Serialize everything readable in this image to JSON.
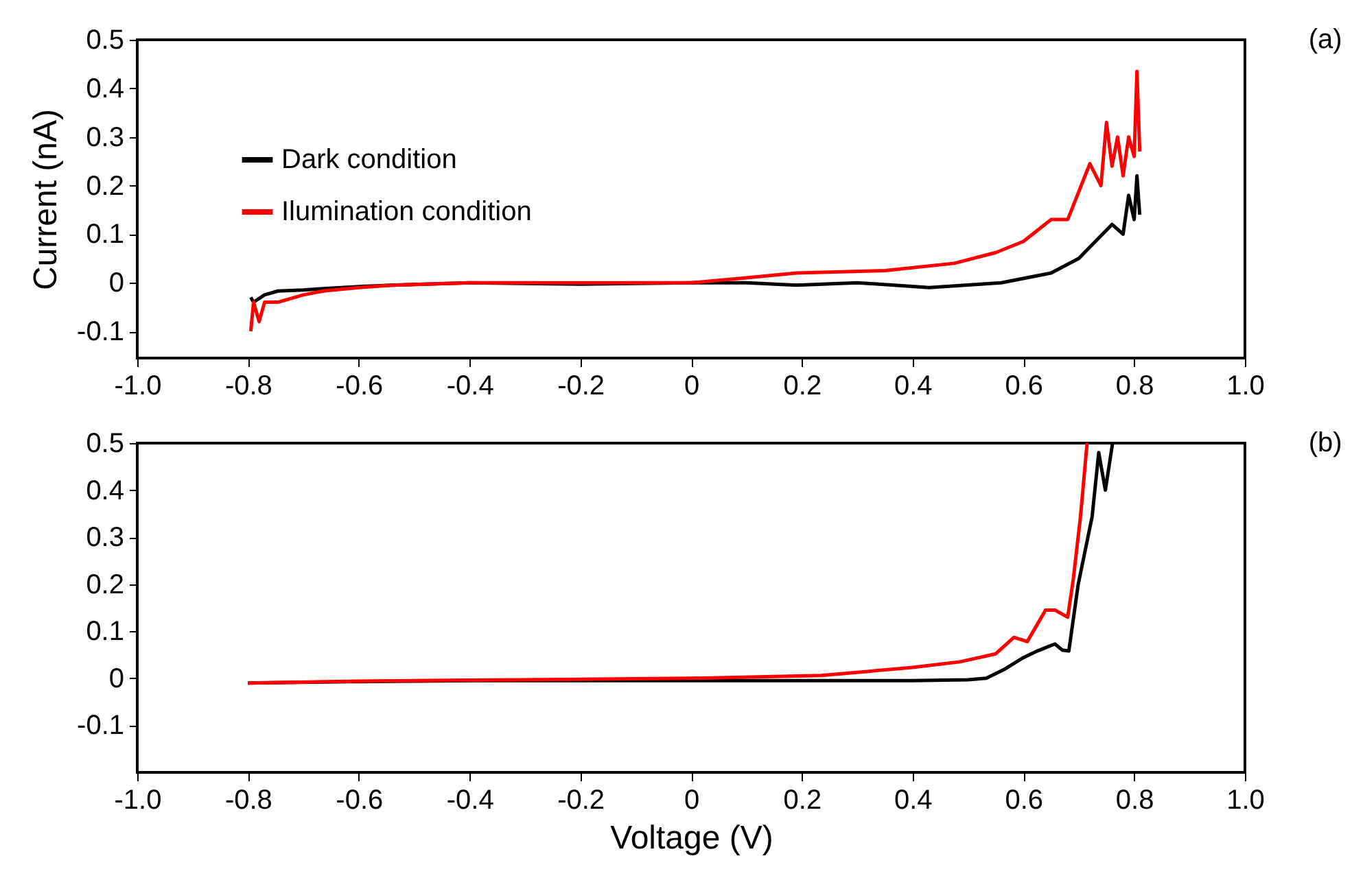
{
  "chart_data": [
    {
      "type": "line",
      "ylabel": "Current (nA)",
      "annotations": [
        "(a)"
      ],
      "legend": "top left",
      "grid": false,
      "xlim": [
        -1.0,
        1.0
      ],
      "ylim": [
        -0.155,
        0.5
      ],
      "xticks": [
        {
          "value": -1,
          "label": "-1.0"
        },
        -0.8,
        -0.6,
        -0.4,
        -0.2,
        {
          "value": 0,
          "label": "0"
        },
        0.2,
        0.4,
        0.6,
        0.8,
        {
          "value": 1,
          "label": "1.0"
        }
      ],
      "yticks": [
        -0.1,
        0,
        0.1,
        0.2,
        0.3,
        0.4,
        0.5
      ],
      "series": [
        {
          "name": "Dark condition",
          "color": "#000000",
          "x": [
            -0.795,
            -0.79,
            -0.77,
            -0.746,
            -0.7,
            -0.664,
            -0.6,
            -0.54,
            -0.4,
            -0.2,
            0,
            0.1,
            0.19,
            0.3,
            0.43,
            0.56,
            0.65,
            0.7,
            0.73,
            0.76,
            0.78,
            0.79,
            0.8,
            0.805,
            0.81
          ],
          "values": [
            -0.03,
            -0.04,
            -0.025,
            -0.017,
            -0.015,
            -0.012,
            -0.008,
            -0.005,
            0,
            -0.003,
            0,
            0,
            -0.005,
            0,
            -0.01,
            0,
            0.02,
            0.05,
            0.085,
            0.12,
            0.1,
            0.18,
            0.13,
            0.22,
            0.14
          ]
        },
        {
          "name": "Ilumination condition",
          "color": "#ff0000",
          "x": [
            -0.795,
            -0.79,
            -0.78,
            -0.77,
            -0.746,
            -0.7,
            -0.664,
            -0.6,
            -0.54,
            -0.4,
            -0.2,
            0,
            0.1,
            0.19,
            0.35,
            0.475,
            0.55,
            0.6,
            0.65,
            0.68,
            0.72,
            0.74,
            0.75,
            0.76,
            0.77,
            0.78,
            0.79,
            0.8,
            0.805,
            0.81
          ],
          "values": [
            -0.1,
            -0.04,
            -0.08,
            -0.04,
            -0.04,
            -0.025,
            -0.017,
            -0.01,
            -0.005,
            0,
            0,
            0,
            0.01,
            0.02,
            0.025,
            0.04,
            0.062,
            0.085,
            0.13,
            0.13,
            0.245,
            0.2,
            0.33,
            0.24,
            0.3,
            0.22,
            0.3,
            0.26,
            0.435,
            0.27
          ]
        }
      ]
    },
    {
      "type": "line",
      "xlabel": "Voltage (V)",
      "annotations": [
        "(b)"
      ],
      "grid": false,
      "xlim": [
        -1.0,
        1.0
      ],
      "ylim": [
        -0.2,
        0.5
      ],
      "xticks": [
        {
          "value": -1,
          "label": "-1.0"
        },
        -0.8,
        -0.6,
        -0.4,
        -0.2,
        {
          "value": 0,
          "label": "0"
        },
        0.2,
        0.4,
        0.6,
        0.8,
        {
          "value": 1,
          "label": "1.0"
        }
      ],
      "yticks": [
        -0.1,
        0,
        0.1,
        0.2,
        0.3,
        0.4,
        0.5
      ],
      "series": [
        {
          "color": "#000000",
          "x": [
            -0.8,
            -0.6,
            -0.4,
            -0.2,
            0,
            0.2,
            0.4,
            0.5,
            0.533,
            0.567,
            0.6,
            0.625,
            0.657,
            0.67,
            0.682,
            0.699,
            0.724,
            0.736,
            0.748,
            0.761
          ],
          "values": [
            -0.01,
            -0.007,
            -0.005,
            -0.005,
            -0.005,
            -0.005,
            -0.005,
            -0.003,
            0,
            0.02,
            0.044,
            0.058,
            0.073,
            0.06,
            0.058,
            0.2,
            0.343,
            0.48,
            0.4,
            0.5
          ]
        },
        {
          "color": "#ff0000",
          "x": [
            -0.8,
            -0.6,
            -0.4,
            -0.2,
            0,
            0.235,
            0.4,
            0.485,
            0.55,
            0.583,
            0.607,
            0.64,
            0.657,
            0.68,
            0.69,
            0.703,
            0.715
          ],
          "values": [
            -0.01,
            -0.006,
            -0.004,
            -0.002,
            0,
            0.006,
            0.023,
            0.035,
            0.052,
            0.087,
            0.078,
            0.145,
            0.145,
            0.13,
            0.21,
            0.343,
            0.5
          ]
        }
      ]
    }
  ]
}
